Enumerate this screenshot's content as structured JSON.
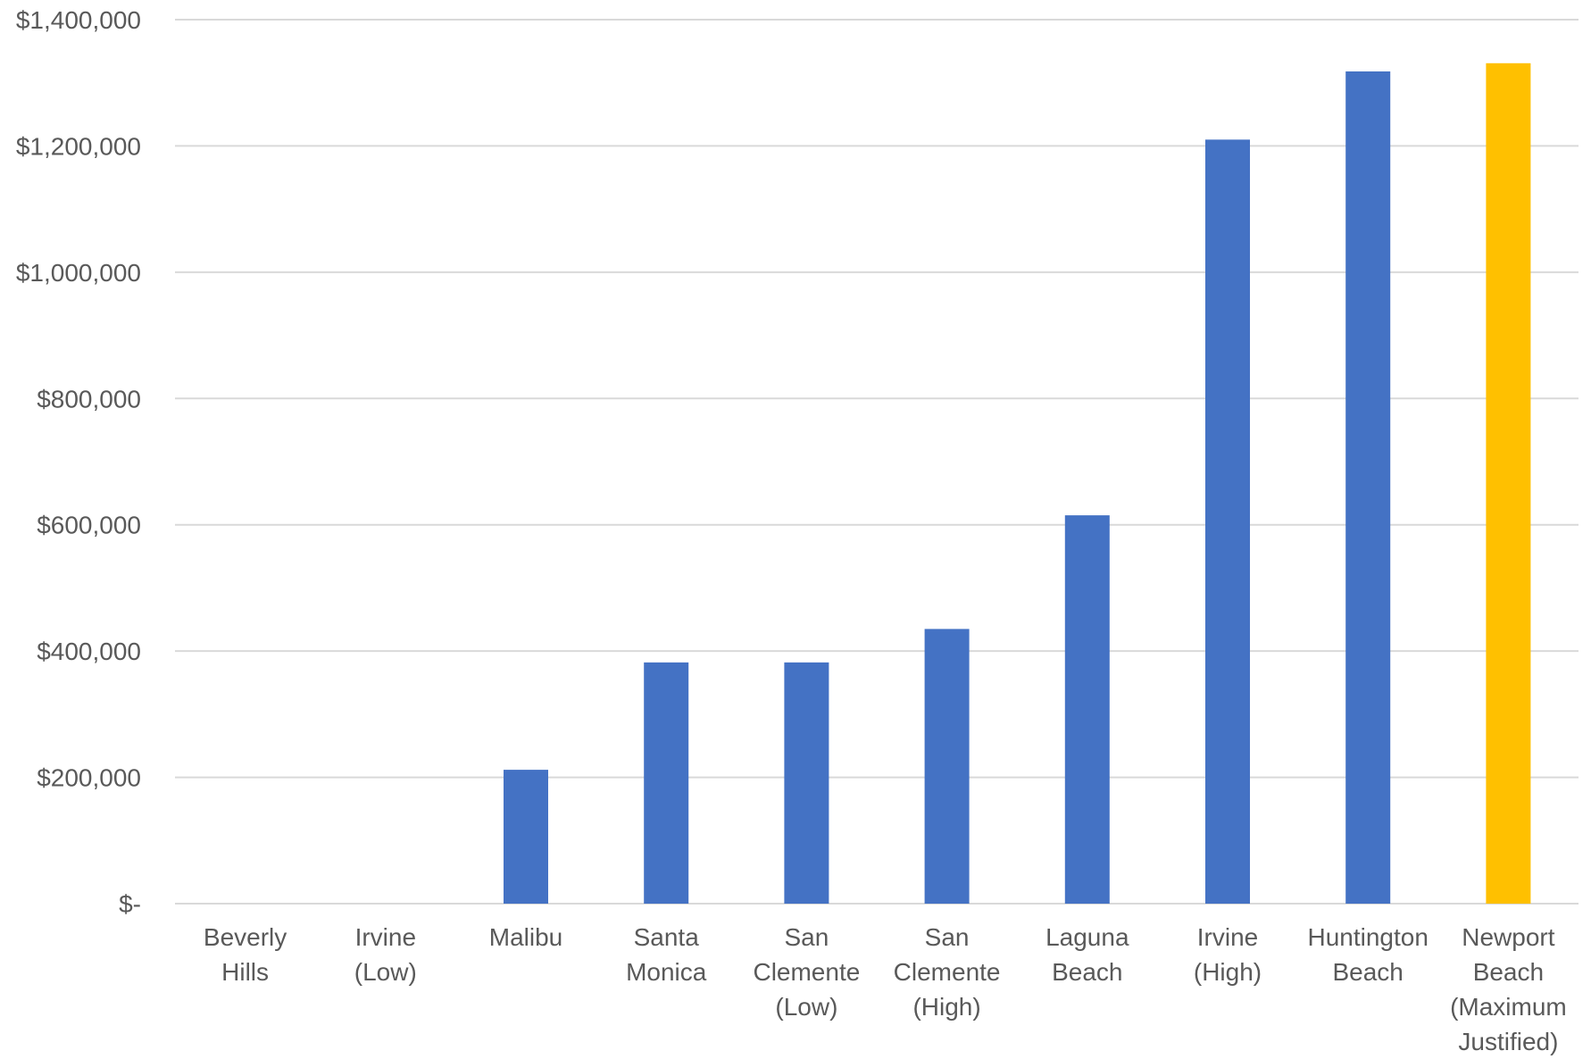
{
  "chart_data": {
    "type": "bar",
    "title": "",
    "xlabel": "",
    "ylabel": "",
    "ylim": [
      0,
      1400000
    ],
    "grid": true,
    "legend": "none",
    "y_ticks": [
      0,
      200000,
      400000,
      600000,
      800000,
      1000000,
      1200000,
      1400000
    ],
    "y_tick_labels": [
      "$-",
      "$200,000",
      "$400,000",
      "$600,000",
      "$800,000",
      "$1,000,000",
      "$1,200,000",
      "$1,400,000"
    ],
    "categories": [
      [
        "Beverly",
        "Hills"
      ],
      [
        "Irvine",
        "(Low)"
      ],
      [
        "Malibu"
      ],
      [
        "Santa",
        "Monica"
      ],
      [
        "San",
        "Clemente",
        "(Low)"
      ],
      [
        "San",
        "Clemente",
        "(High)"
      ],
      [
        "Laguna",
        "Beach"
      ],
      [
        "Irvine",
        "(High)"
      ],
      [
        "Huntington",
        "Beach"
      ],
      [
        "Newport",
        "Beach",
        "(Maximum",
        "Justified)"
      ]
    ],
    "values": [
      0,
      0,
      212000,
      382000,
      382000,
      435000,
      615000,
      1210000,
      1318000,
      1331000
    ],
    "bar_colors": [
      "#4472c4",
      "#4472c4",
      "#4472c4",
      "#4472c4",
      "#4472c4",
      "#4472c4",
      "#4472c4",
      "#4472c4",
      "#4472c4",
      "#ffc000"
    ]
  }
}
